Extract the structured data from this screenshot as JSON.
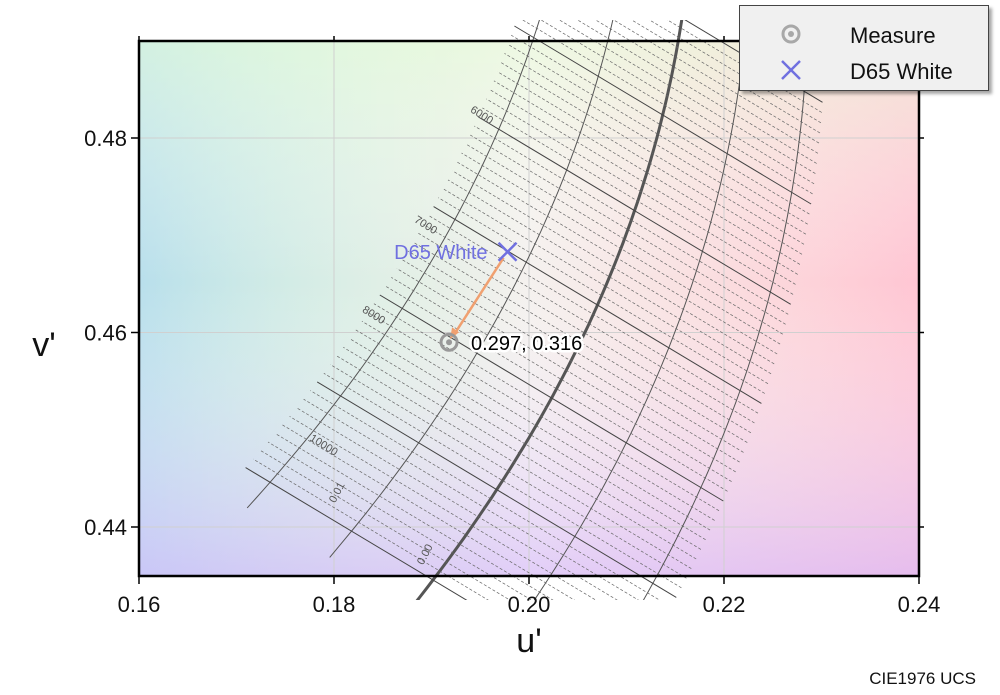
{
  "chart_data": {
    "type": "scatter",
    "title": "",
    "xlabel": "u'",
    "ylabel": "v'",
    "xlim": [
      0.16,
      0.24
    ],
    "ylim": [
      0.435,
      0.49
    ],
    "x_ticks": [
      "0.16",
      "0.18",
      "0.20",
      "0.22",
      "0.24"
    ],
    "y_ticks": [
      "0.44",
      "0.46",
      "0.48"
    ],
    "grid": true,
    "legend_position": "top-right",
    "series": [
      {
        "name": "Measure",
        "marker": "circle",
        "color": "#999999",
        "points": [
          {
            "x": 0.1918,
            "y": 0.459
          }
        ]
      },
      {
        "name": "D65 White",
        "marker": "x",
        "color": "#7070e0",
        "points": [
          {
            "x": 0.1978,
            "y": 0.4683
          }
        ]
      }
    ],
    "annotations": {
      "measure_label": "0.297,  0.316",
      "d65_label": "D65 White"
    },
    "cct_labels": [
      "6000",
      "7000",
      "8000",
      "10000"
    ],
    "duv_labels": [
      "0.01",
      "0.00"
    ],
    "colors": {
      "arrow": "#f0a070",
      "planckian": "#555555",
      "grid_lines": "#555555"
    }
  },
  "footer": "CIE1976 UCS",
  "legend": {
    "items": [
      {
        "label": "Measure",
        "icon": "ring-marker-icon"
      },
      {
        "label": "D65 White",
        "icon": "x-marker-icon"
      }
    ]
  }
}
